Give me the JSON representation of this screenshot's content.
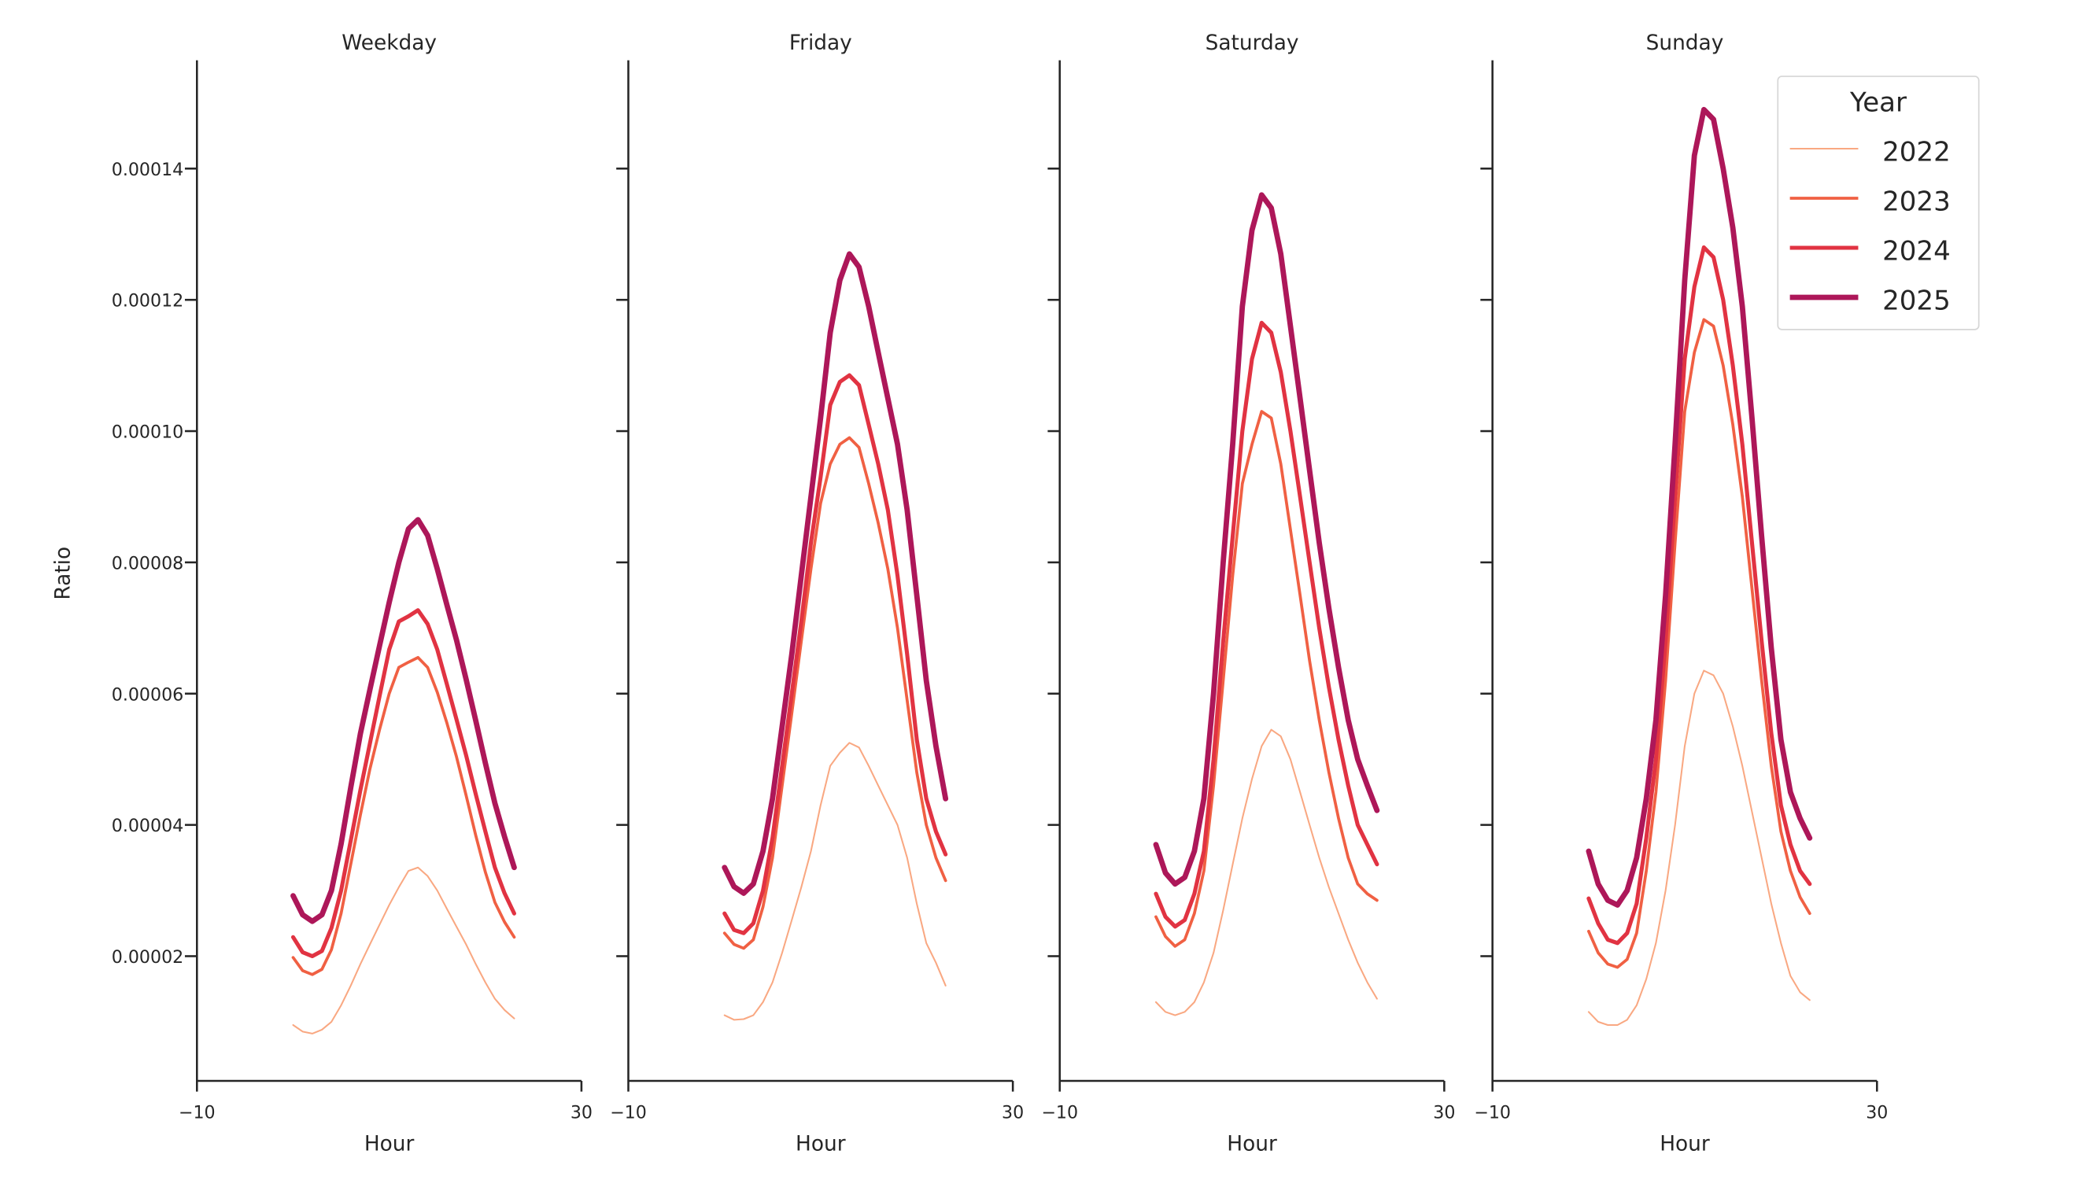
{
  "chart_data": [
    {
      "type": "line",
      "title": "Weekday",
      "xlabel": "Hour",
      "ylabel": "Ratio",
      "xlim": [
        -10,
        30
      ],
      "xticks": [
        "−10",
        "30"
      ],
      "x": [
        0,
        1,
        2,
        3,
        4,
        5,
        6,
        7,
        8,
        9,
        10,
        11,
        12,
        13,
        14,
        15,
        16,
        17,
        18,
        19,
        20,
        21,
        22,
        23
      ],
      "series": [
        {
          "name": "2022",
          "values": [
            9.5e-06,
            8.5e-06,
            8.2e-06,
            8.8e-06,
            1e-05,
            1.25e-05,
            1.55e-05,
            1.88e-05,
            2.18e-05,
            2.48e-05,
            2.78e-05,
            3.05e-05,
            3.3e-05,
            3.35e-05,
            3.22e-05,
            3e-05,
            2.72e-05,
            2.45e-05,
            2.18e-05,
            1.88e-05,
            1.6e-05,
            1.35e-05,
            1.18e-05,
            1.05e-05
          ]
        },
        {
          "name": "2023",
          "values": [
            1.98e-05,
            1.78e-05,
            1.72e-05,
            1.8e-05,
            2.1e-05,
            2.65e-05,
            3.4e-05,
            4.15e-05,
            4.85e-05,
            5.45e-05,
            6e-05,
            6.4e-05,
            6.48e-05,
            6.55e-05,
            6.4e-05,
            6.02e-05,
            5.55e-05,
            5.04e-05,
            4.45e-05,
            3.84e-05,
            3.28e-05,
            2.82e-05,
            2.52e-05,
            2.29e-05
          ]
        },
        {
          "name": "2024",
          "values": [
            2.29e-05,
            2.06e-05,
            2e-05,
            2.08e-05,
            2.43e-05,
            3e-05,
            3.76e-05,
            4.53e-05,
            5.24e-05,
            5.96e-05,
            6.67e-05,
            7.1e-05,
            7.18e-05,
            7.27e-05,
            7.06e-05,
            6.67e-05,
            6.14e-05,
            5.61e-05,
            5.06e-05,
            4.47e-05,
            3.9e-05,
            3.35e-05,
            2.96e-05,
            2.65e-05
          ]
        },
        {
          "name": "2025",
          "values": [
            2.92e-05,
            2.63e-05,
            2.53e-05,
            2.63e-05,
            3e-05,
            3.71e-05,
            4.57e-05,
            5.39e-05,
            6.06e-05,
            6.73e-05,
            7.39e-05,
            8e-05,
            8.51e-05,
            8.65e-05,
            8.41e-05,
            7.9e-05,
            7.35e-05,
            6.82e-05,
            6.22e-05,
            5.59e-05,
            4.94e-05,
            4.33e-05,
            3.82e-05,
            3.35e-05
          ]
        }
      ]
    },
    {
      "type": "line",
      "title": "Friday",
      "xlabel": "Hour",
      "xlim": [
        -10,
        30
      ],
      "xticks": [
        "−10",
        "30"
      ],
      "x": [
        0,
        1,
        2,
        3,
        4,
        5,
        6,
        7,
        8,
        9,
        10,
        11,
        12,
        13,
        14,
        15,
        16,
        17,
        18,
        19,
        20,
        21,
        22,
        23
      ],
      "series": [
        {
          "name": "2022",
          "values": [
            1.1e-05,
            1.03e-05,
            1.04e-05,
            1.1e-05,
            1.3e-05,
            1.6e-05,
            2.05e-05,
            2.55e-05,
            3.05e-05,
            3.6e-05,
            4.3e-05,
            4.9e-05,
            5.1e-05,
            5.25e-05,
            5.18e-05,
            4.9e-05,
            4.6e-05,
            4.3e-05,
            4e-05,
            3.5e-05,
            2.8e-05,
            2.2e-05,
            1.9e-05,
            1.55e-05
          ]
        },
        {
          "name": "2023",
          "values": [
            2.35e-05,
            2.18e-05,
            2.12e-05,
            2.25e-05,
            2.75e-05,
            3.5e-05,
            4.6e-05,
            5.7e-05,
            6.8e-05,
            7.9e-05,
            8.9e-05,
            9.5e-05,
            9.8e-05,
            9.9e-05,
            9.75e-05,
            9.2e-05,
            8.6e-05,
            7.9e-05,
            7e-05,
            5.9e-05,
            4.8e-05,
            4e-05,
            3.5e-05,
            3.15e-05
          ]
        },
        {
          "name": "2024",
          "values": [
            2.65e-05,
            2.4e-05,
            2.35e-05,
            2.5e-05,
            3e-05,
            3.8e-05,
            4.9e-05,
            6e-05,
            7.1e-05,
            8.3e-05,
            9.3e-05,
            0.000104,
            0.0001075,
            0.0001085,
            0.000107,
            0.000101,
            9.5e-05,
            8.8e-05,
            7.8e-05,
            6.6e-05,
            5.3e-05,
            4.4e-05,
            3.9e-05,
            3.55e-05
          ]
        },
        {
          "name": "2025",
          "values": [
            3.35e-05,
            3.06e-05,
            2.96e-05,
            3.1e-05,
            3.6e-05,
            4.4e-05,
            5.5e-05,
            6.6e-05,
            7.8e-05,
            9e-05,
            0.000102,
            0.000115,
            0.000123,
            0.000127,
            0.000125,
            0.000119,
            0.000112,
            0.000105,
            9.8e-05,
            8.8e-05,
            7.5e-05,
            6.2e-05,
            5.2e-05,
            4.4e-05
          ]
        }
      ]
    },
    {
      "type": "line",
      "title": "Saturday",
      "xlabel": "Hour",
      "xlim": [
        -10,
        30
      ],
      "xticks": [
        "−10",
        "30"
      ],
      "x": [
        0,
        1,
        2,
        3,
        4,
        5,
        6,
        7,
        8,
        9,
        10,
        11,
        12,
        13,
        14,
        15,
        16,
        17,
        18,
        19,
        20,
        21,
        22,
        23
      ],
      "series": [
        {
          "name": "2022",
          "values": [
            1.3e-05,
            1.15e-05,
            1.1e-05,
            1.15e-05,
            1.3e-05,
            1.6e-05,
            2.05e-05,
            2.7e-05,
            3.4e-05,
            4.1e-05,
            4.7e-05,
            5.2e-05,
            5.45e-05,
            5.35e-05,
            5e-05,
            4.5e-05,
            4e-05,
            3.5e-05,
            3.05e-05,
            2.65e-05,
            2.25e-05,
            1.9e-05,
            1.6e-05,
            1.35e-05
          ]
        },
        {
          "name": "2023",
          "values": [
            2.6e-05,
            2.3e-05,
            2.15e-05,
            2.25e-05,
            2.65e-05,
            3.3e-05,
            4.6e-05,
            6.2e-05,
            7.8e-05,
            9.2e-05,
            9.8e-05,
            0.000103,
            0.000102,
            9.5e-05,
            8.5e-05,
            7.5e-05,
            6.5e-05,
            5.6e-05,
            4.8e-05,
            4.1e-05,
            3.5e-05,
            3.1e-05,
            2.95e-05,
            2.85e-05
          ]
        },
        {
          "name": "2024",
          "values": [
            2.95e-05,
            2.6e-05,
            2.45e-05,
            2.55e-05,
            2.95e-05,
            3.6e-05,
            5e-05,
            6.8e-05,
            8.4e-05,
            0.0001,
            0.000111,
            0.0001165,
            0.000115,
            0.000109,
            0.0001,
            9e-05,
            8e-05,
            7e-05,
            6.1e-05,
            5.3e-05,
            4.6e-05,
            4e-05,
            3.7e-05,
            3.4e-05
          ]
        },
        {
          "name": "2025",
          "values": [
            3.7e-05,
            3.27e-05,
            3.1e-05,
            3.2e-05,
            3.6e-05,
            4.4e-05,
            6e-05,
            8e-05,
            9.8e-05,
            0.000119,
            0.0001306,
            0.000136,
            0.000134,
            0.000127,
            0.000116,
            0.000105,
            9.4e-05,
            8.3e-05,
            7.3e-05,
            6.4e-05,
            5.6e-05,
            5e-05,
            4.6e-05,
            4.22e-05
          ]
        }
      ]
    },
    {
      "type": "line",
      "title": "Sunday",
      "xlabel": "Hour",
      "xlim": [
        -10,
        30
      ],
      "xticks": [
        "−10",
        "30"
      ],
      "x": [
        0,
        1,
        2,
        3,
        4,
        5,
        6,
        7,
        8,
        9,
        10,
        11,
        12,
        13,
        14,
        15,
        16,
        17,
        18,
        19,
        20,
        21,
        22,
        23
      ],
      "series": [
        {
          "name": "2022",
          "values": [
            1.15e-05,
            1e-05,
            9.5e-06,
            9.5e-06,
            1.03e-05,
            1.25e-05,
            1.65e-05,
            2.2e-05,
            3e-05,
            4e-05,
            5.2e-05,
            6e-05,
            6.35e-05,
            6.28e-05,
            6e-05,
            5.5e-05,
            4.9e-05,
            4.2e-05,
            3.5e-05,
            2.8e-05,
            2.2e-05,
            1.7e-05,
            1.45e-05,
            1.33e-05
          ]
        },
        {
          "name": "2023",
          "values": [
            2.38e-05,
            2.05e-05,
            1.88e-05,
            1.83e-05,
            1.95e-05,
            2.35e-05,
            3.3e-05,
            4.5e-05,
            6.2e-05,
            8.3e-05,
            0.000103,
            0.000112,
            0.000117,
            0.000116,
            0.00011,
            0.000101,
            9e-05,
            7.6e-05,
            6.2e-05,
            4.9e-05,
            3.9e-05,
            3.3e-05,
            2.9e-05,
            2.65e-05
          ]
        },
        {
          "name": "2024",
          "values": [
            2.88e-05,
            2.5e-05,
            2.25e-05,
            2.2e-05,
            2.35e-05,
            2.8e-05,
            3.8e-05,
            5e-05,
            6.8e-05,
            9e-05,
            0.000111,
            0.000122,
            0.000128,
            0.0001265,
            0.00012,
            0.00011,
            9.8e-05,
            8.3e-05,
            6.8e-05,
            5.4e-05,
            4.3e-05,
            3.7e-05,
            3.3e-05,
            3.1e-05
          ]
        },
        {
          "name": "2025",
          "values": [
            3.6e-05,
            3.1e-05,
            2.85e-05,
            2.78e-05,
            3e-05,
            3.5e-05,
            4.4e-05,
            5.6e-05,
            7.5e-05,
            9.8e-05,
            0.000123,
            0.000142,
            0.000149,
            0.0001475,
            0.00014,
            0.000131,
            0.000119,
            0.000102,
            8.4e-05,
            6.7e-05,
            5.3e-05,
            4.5e-05,
            4.1e-05,
            3.8e-05
          ]
        }
      ]
    }
  ],
  "shared_y": {
    "ylim": [
      1e-06,
      0.0001565
    ],
    "ticks": [
      2e-05,
      4e-05,
      6e-05,
      8e-05,
      0.0001,
      0.00012,
      0.00014
    ],
    "tick_labels": [
      "0.00002",
      "0.00004",
      "0.00006",
      "0.00008",
      "0.00010",
      "0.00012",
      "0.00014"
    ]
  },
  "legend": {
    "title": "Year",
    "placement": "top-right",
    "entries": [
      "2022",
      "2023",
      "2024",
      "2025"
    ]
  },
  "colors": {
    "2022": "#f9a882",
    "2023": "#f06043",
    "2024": "#e13342",
    "2025": "#ad1759"
  },
  "grid": false
}
